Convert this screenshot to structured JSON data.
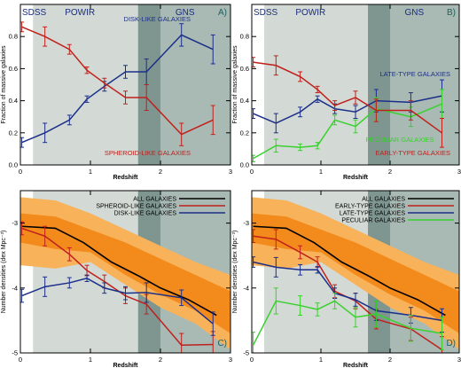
{
  "colors": {
    "sdss_band": "#ffffff",
    "powir_band": "#d3d9d4",
    "overlap_band": "#7e9590",
    "gns_band": "#a9b9b4",
    "blue": "#1b2f8a",
    "red": "#c0201b",
    "green": "#39d12e",
    "black": "#000000",
    "band_dark": "#f28a1c",
    "band_light": "#f7b25a"
  },
  "chart_data": [
    {
      "panel": "A)",
      "type": "line",
      "xlabel": "Redshift",
      "ylabel": "Fraction of massive galaxies",
      "xlim": [
        0,
        3
      ],
      "ylim": [
        0,
        1
      ],
      "xticks": [
        "0",
        "1",
        "2",
        "3"
      ],
      "yticks": [
        "0.0",
        "0.2",
        "0.4",
        "0.6",
        "0.8"
      ],
      "survey_labels": [
        "SDSS",
        "POWIR",
        "GNS"
      ],
      "series": [
        {
          "name": "DISK-LIKE GALAXIES",
          "color_key": "blue",
          "x": [
            0.02,
            0.35,
            0.7,
            0.95,
            1.2,
            1.5,
            1.8,
            2.3,
            2.75
          ],
          "y": [
            0.14,
            0.2,
            0.28,
            0.41,
            0.49,
            0.58,
            0.58,
            0.81,
            0.72
          ],
          "err": [
            0.03,
            0.06,
            0.03,
            0.02,
            0.03,
            0.04,
            0.08,
            0.07,
            0.09
          ]
        },
        {
          "name": "SPHEROID-LIKE GALAXIES",
          "color_key": "red",
          "x": [
            0.02,
            0.35,
            0.7,
            0.95,
            1.2,
            1.5,
            1.8,
            2.3,
            2.75
          ],
          "y": [
            0.86,
            0.8,
            0.72,
            0.59,
            0.51,
            0.42,
            0.42,
            0.19,
            0.28
          ],
          "err": [
            0.03,
            0.06,
            0.03,
            0.02,
            0.03,
            0.04,
            0.08,
            0.07,
            0.09
          ]
        }
      ]
    },
    {
      "panel": "B)",
      "type": "line",
      "xlabel": "Redshift",
      "ylabel": "Fraction of massive galaxies",
      "xlim": [
        0,
        3
      ],
      "ylim": [
        0,
        1
      ],
      "xticks": [
        "0",
        "1",
        "2",
        "3"
      ],
      "yticks": [
        "0.0",
        "0.2",
        "0.4",
        "0.6",
        "0.8"
      ],
      "survey_labels": [
        "SDSS",
        "POWIR",
        "GNS"
      ],
      "series": [
        {
          "name": "LATE-TYPE GALAXIES",
          "color_key": "blue",
          "x": [
            0.02,
            0.35,
            0.7,
            0.95,
            1.2,
            1.5,
            1.8,
            2.3,
            2.75
          ],
          "y": [
            0.32,
            0.26,
            0.33,
            0.41,
            0.35,
            0.33,
            0.4,
            0.39,
            0.43
          ],
          "err": [
            0.03,
            0.06,
            0.03,
            0.02,
            0.03,
            0.04,
            0.07,
            0.06,
            0.1
          ]
        },
        {
          "name": "PECULIAR GALAXIES",
          "color_key": "green",
          "x": [
            0.02,
            0.35,
            0.7,
            0.95,
            1.2,
            1.5,
            1.8,
            2.3,
            2.75
          ],
          "y": [
            0.04,
            0.12,
            0.11,
            0.12,
            0.28,
            0.24,
            0.35,
            0.3,
            0.38
          ],
          "err": [
            0.02,
            0.04,
            0.02,
            0.02,
            0.03,
            0.04,
            0.07,
            0.06,
            0.09
          ]
        },
        {
          "name": "EARLY-TYPE GALAXIES",
          "color_key": "red",
          "x": [
            0.02,
            0.35,
            0.7,
            0.95,
            1.2,
            1.5,
            1.8,
            2.3,
            2.75
          ],
          "y": [
            0.64,
            0.62,
            0.55,
            0.47,
            0.37,
            0.42,
            0.34,
            0.34,
            0.2
          ],
          "err": [
            0.03,
            0.06,
            0.03,
            0.02,
            0.03,
            0.04,
            0.07,
            0.06,
            0.09
          ]
        }
      ]
    },
    {
      "panel": "C)",
      "type": "line",
      "xlabel": "Redshift",
      "ylabel": "Number densities (dex Mpc⁻³)",
      "xlim": [
        0,
        3
      ],
      "ylim": [
        -5,
        -2.5
      ],
      "xticks": [
        "0",
        "1",
        "2",
        "3"
      ],
      "yticks": [
        "-5",
        "-4",
        "-3"
      ],
      "legend": "top-right",
      "band_x": [
        0,
        0.5,
        1,
        1.5,
        2,
        2.5,
        3
      ],
      "band_outer_hi": [
        -2.6,
        -2.65,
        -2.85,
        -3.1,
        -3.35,
        -3.6,
        -3.8
      ],
      "band_outer_lo": [
        -3.65,
        -3.7,
        -3.6,
        -3.95,
        -4.3,
        -4.55,
        -4.95
      ],
      "band_inner_hi": [
        -2.85,
        -2.9,
        -3.1,
        -3.3,
        -3.55,
        -3.8,
        -4.05
      ],
      "band_inner_lo": [
        -3.3,
        -3.4,
        -3.45,
        -3.8,
        -4.1,
        -4.35,
        -4.7
      ],
      "series": [
        {
          "name": "ALL GALAXIES",
          "color_key": "black",
          "x": [
            0.02,
            0.5,
            0.9,
            1.3,
            1.7,
            2.0,
            2.4,
            2.8
          ],
          "y": [
            -3.05,
            -3.08,
            -3.3,
            -3.6,
            -3.82,
            -4.0,
            -4.18,
            -4.42
          ]
        },
        {
          "name": "SPHEROID-LIKE GALAXIES",
          "color_key": "red",
          "x": [
            0.02,
            0.35,
            0.7,
            0.95,
            1.2,
            1.5,
            1.8,
            2.3,
            2.75
          ],
          "y": [
            -3.08,
            -3.2,
            -3.48,
            -3.73,
            -3.9,
            -4.12,
            -4.25,
            -4.88,
            -4.87
          ],
          "err": [
            0.1,
            0.15,
            0.1,
            0.08,
            0.1,
            0.12,
            0.15,
            0.18,
            0.2
          ]
        },
        {
          "name": "DISK-LIKE GALAXIES",
          "color_key": "blue",
          "x": [
            0.02,
            0.35,
            0.7,
            0.95,
            1.2,
            1.5,
            1.8,
            2.3,
            2.75
          ],
          "y": [
            -4.12,
            -3.98,
            -3.92,
            -3.85,
            -4.0,
            -4.08,
            -4.07,
            -4.15,
            -4.55
          ],
          "err": [
            0.1,
            0.15,
            0.08,
            0.05,
            0.08,
            0.1,
            0.15,
            0.12,
            0.18
          ]
        }
      ]
    },
    {
      "panel": "D)",
      "type": "line",
      "xlabel": "Redshift",
      "ylabel": "Number densities (dex Mpc⁻³)",
      "xlim": [
        0,
        3
      ],
      "ylim": [
        -5,
        -2.5
      ],
      "xticks": [
        "0",
        "1",
        "2",
        "3"
      ],
      "yticks": [
        "-5",
        "-4",
        "-3"
      ],
      "legend": "top-right",
      "band_x": [
        0,
        0.5,
        1,
        1.5,
        2,
        2.5,
        3
      ],
      "band_outer_hi": [
        -2.6,
        -2.65,
        -2.85,
        -3.1,
        -3.35,
        -3.6,
        -3.8
      ],
      "band_outer_lo": [
        -3.65,
        -3.7,
        -3.6,
        -3.95,
        -4.3,
        -4.55,
        -4.95
      ],
      "band_inner_hi": [
        -2.85,
        -2.9,
        -3.1,
        -3.3,
        -3.55,
        -3.8,
        -4.05
      ],
      "band_inner_lo": [
        -3.3,
        -3.4,
        -3.45,
        -3.8,
        -4.1,
        -4.35,
        -4.7
      ],
      "series": [
        {
          "name": "ALL GALAXIES",
          "color_key": "black",
          "x": [
            0.02,
            0.5,
            0.9,
            1.3,
            1.7,
            2.0,
            2.4,
            2.8
          ],
          "y": [
            -3.05,
            -3.08,
            -3.3,
            -3.6,
            -3.82,
            -4.0,
            -4.18,
            -4.42
          ]
        },
        {
          "name": "EARLY-TYPE GALAXIES",
          "color_key": "red",
          "x": [
            0.02,
            0.35,
            0.7,
            0.95,
            1.2,
            1.5,
            1.8,
            2.3,
            2.75
          ],
          "y": [
            -3.2,
            -3.25,
            -3.45,
            -3.6,
            -4.05,
            -4.2,
            -4.48,
            -4.63,
            -4.95
          ],
          "err": [
            0.1,
            0.15,
            0.1,
            0.08,
            0.1,
            0.12,
            0.15,
            0.18,
            0.2
          ]
        },
        {
          "name": "LATE-TYPE GALAXIES",
          "color_key": "blue",
          "x": [
            0.02,
            0.35,
            0.7,
            0.95,
            1.2,
            1.5,
            1.8,
            2.3,
            2.75
          ],
          "y": [
            -3.6,
            -3.68,
            -3.72,
            -3.72,
            -4.08,
            -4.18,
            -4.35,
            -4.42,
            -4.5
          ],
          "err": [
            0.08,
            0.15,
            0.08,
            0.05,
            0.08,
            0.1,
            0.15,
            0.12,
            0.18
          ]
        },
        {
          "name": "PECULIAR GALAXIES",
          "color_key": "green",
          "x": [
            0.02,
            0.35,
            0.7,
            0.95,
            1.2,
            1.5,
            1.8,
            2.3,
            2.75
          ],
          "y": [
            -4.88,
            -4.2,
            -4.27,
            -4.33,
            -4.2,
            -4.45,
            -4.4,
            -4.62,
            -4.7
          ],
          "err": [
            0.2,
            0.2,
            0.15,
            0.1,
            0.12,
            0.15,
            0.2,
            0.2,
            0.25
          ]
        }
      ]
    }
  ]
}
